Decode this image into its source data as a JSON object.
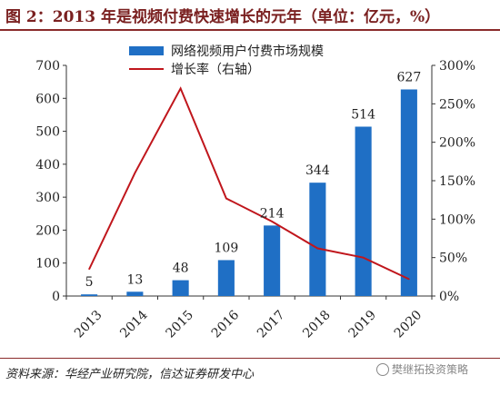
{
  "title": "图 2：2013 年是视频付费快速增长的元年（单位：亿元，%）",
  "source": "资料来源：华经产业研究院，信达证券研发中心",
  "watermark": "樊继拓投资策略",
  "chart_data": {
    "type": "bar",
    "categories": [
      "2013",
      "2014",
      "2015",
      "2016",
      "2017",
      "2018",
      "2019",
      "2020"
    ],
    "series": [
      {
        "name": "网络视频用户付费市场规模",
        "type": "bar",
        "axis": "left",
        "values": [
          5,
          13,
          48,
          109,
          214,
          344,
          514,
          627
        ],
        "data_labels": [
          "5",
          "13",
          "48",
          "109",
          "214",
          "344",
          "514",
          "627"
        ],
        "color": "#1f6fc5"
      },
      {
        "name": "增长率（右轴）",
        "type": "line",
        "axis": "right",
        "values": [
          35,
          160,
          270,
          127,
          97,
          62,
          50,
          22
        ],
        "color": "#c0161c"
      }
    ],
    "y_left": {
      "lim": [
        0,
        700
      ],
      "ticks": [
        "0",
        "100",
        "200",
        "300",
        "400",
        "500",
        "600",
        "700"
      ]
    },
    "y_right": {
      "lim": [
        0,
        300
      ],
      "ticks": [
        "0%",
        "50%",
        "100%",
        "150%",
        "200%",
        "250%",
        "300%"
      ]
    },
    "legend_position": "top-center",
    "grid": false
  }
}
